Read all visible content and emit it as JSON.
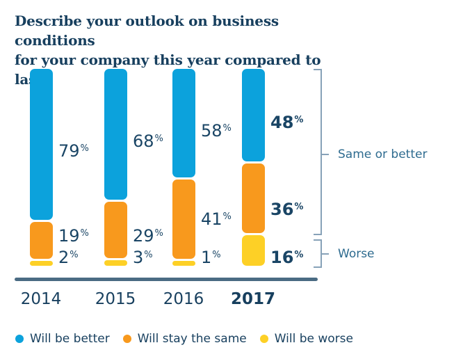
{
  "title": {
    "line1": "Describe your outlook on business conditions",
    "line2": "for your company this year compared to last:"
  },
  "colors": {
    "blue": "#0ca2dc",
    "orange": "#f8991d",
    "yellow": "#fdd026",
    "navy": "#173f5e",
    "label_navy": "#1a4565",
    "axis": "#4a6b83",
    "bracket_line": "#87a2b8",
    "bracket_text": "#2e6b8f"
  },
  "chart_data": {
    "type": "bar",
    "stacked": true,
    "unit": "%",
    "value_suffix": "%",
    "categories": [
      "2014",
      "2015",
      "2016",
      "2017"
    ],
    "highlight_category": "2017",
    "series": [
      {
        "name": "Will be better",
        "color_key": "blue",
        "values": [
          79,
          68,
          58,
          48
        ]
      },
      {
        "name": "Will stay the same",
        "color_key": "orange",
        "values": [
          19,
          29,
          41,
          36
        ]
      },
      {
        "name": "Will be worse",
        "color_key": "yellow",
        "values": [
          2,
          3,
          1,
          16
        ]
      }
    ],
    "annotations": [
      {
        "label": "Same or better",
        "covers": [
          "Will be better",
          "Will stay the same"
        ]
      },
      {
        "label": "Worse",
        "covers": [
          "Will be worse"
        ]
      }
    ],
    "legend": [
      "Will be better",
      "Will stay the same",
      "Will be worse"
    ],
    "legend_position": "bottom",
    "axis_baseline": true,
    "grid": false
  }
}
